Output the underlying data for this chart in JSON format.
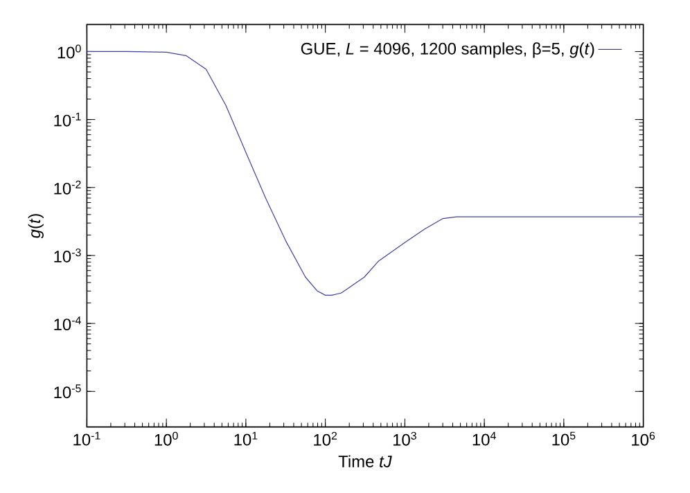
{
  "chart_data": {
    "type": "line",
    "xlabel": "Time *tJ*",
    "ylabel": "*g*(*t*)",
    "log": "xy",
    "grid": false,
    "legend": "top right",
    "marker": "none",
    "line_style": "solid",
    "xlim": [
      0.1,
      1000000
    ],
    "ylim": [
      3e-06,
      2.5
    ],
    "xticks": [
      {
        "value": 0.1,
        "label": "10$^{-1}$"
      },
      {
        "value": 1,
        "label": "10$^{0}$"
      },
      {
        "value": 10,
        "label": "10$^{1}$"
      },
      {
        "value": 100,
        "label": "10$^{2}$"
      },
      {
        "value": 1000,
        "label": "10$^{3}$"
      },
      {
        "value": 10000,
        "label": "10$^{4}$"
      },
      {
        "value": 100000,
        "label": "10$^{5}$"
      },
      {
        "value": 1000000,
        "label": "10$^{6}$"
      }
    ],
    "yticks": [
      {
        "value": 1e-05,
        "label": "10$^{-5}$"
      },
      {
        "value": 0.0001,
        "label": "10$^{-4}$"
      },
      {
        "value": 0.001,
        "label": "10$^{-3}$"
      },
      {
        "value": 0.01,
        "label": "10$^{-2}$"
      },
      {
        "value": 0.1,
        "label": "10$^{-1}$"
      },
      {
        "value": 1,
        "label": "10$^{0}$"
      }
    ],
    "series": [
      {
        "name": "GUE, *L* = 4096, 1200 samples, β=5, *g*(*t*)",
        "color": "#4040a0",
        "x": [
          0.1,
          0.316,
          1,
          1.78,
          3.16,
          5.62,
          10,
          17.8,
          31.6,
          56.2,
          79.4,
          100,
          120,
          158,
          209,
          309,
          468,
          1000,
          1778,
          3020,
          4467,
          10000,
          31600,
          100000,
          316000,
          1000000
        ],
        "values": [
          1.0,
          1.0,
          0.98,
          0.87,
          0.55,
          0.16,
          0.033,
          0.0069,
          0.00166,
          0.00048,
          0.0003,
          0.00026,
          0.00026,
          0.00028,
          0.00035,
          0.00048,
          0.00083,
          0.00155,
          0.00245,
          0.0035,
          0.0037,
          0.0037,
          0.0037,
          0.0037,
          0.0037,
          0.0037
        ]
      }
    ]
  }
}
